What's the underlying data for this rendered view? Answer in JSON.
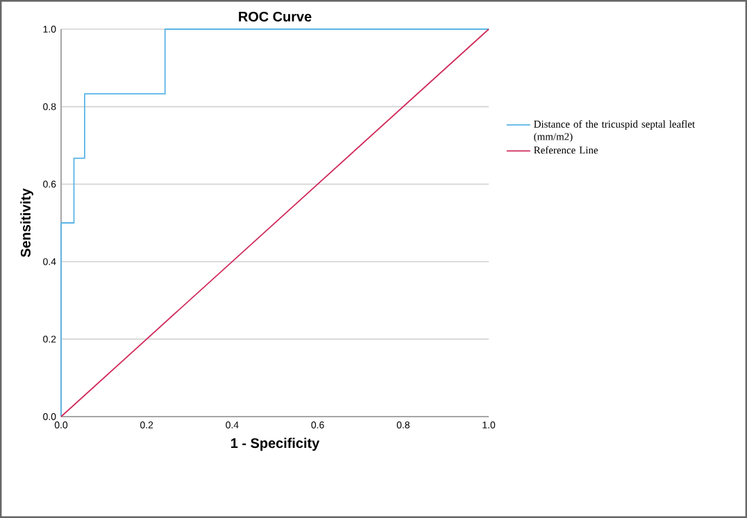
{
  "chart_data": {
    "type": "line",
    "title": "ROC Curve",
    "xlabel": "1 - Specificity",
    "ylabel": "Sensitivity",
    "series": [
      {
        "name": "Distance of the tricuspid septal leaflet (mm/m2)",
        "color": "#5ab4e6",
        "x": [
          0,
          0,
          0.03,
          0.03,
          0.055,
          0.055,
          0.243,
          0.243,
          1
        ],
        "values": [
          0,
          0.5,
          0.5,
          0.667,
          0.667,
          0.833,
          0.833,
          1,
          1
        ]
      },
      {
        "name": "Reference Line",
        "color": "#d02a5a",
        "x": [
          0,
          1
        ],
        "values": [
          0,
          1
        ]
      }
    ],
    "xlim": [
      0,
      1
    ],
    "ylim": [
      0,
      1
    ],
    "xticks": [
      {
        "value": 0,
        "label": "0.0"
      },
      0.2,
      0.4,
      0.6,
      0.8,
      {
        "value": 1,
        "label": "1.0"
      }
    ],
    "yticks": [
      {
        "value": 0,
        "label": "0.0"
      },
      0.2,
      0.4,
      0.6,
      0.8,
      {
        "value": 1,
        "label": "1.0"
      }
    ],
    "grid": "y",
    "legend": "right",
    "marker": "none",
    "line_style": "solid"
  }
}
